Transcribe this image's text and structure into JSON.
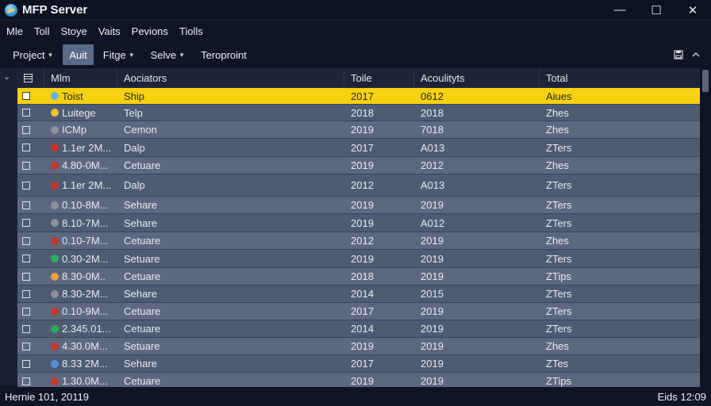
{
  "window": {
    "title": "MFP Server",
    "minimize_glyph": "—",
    "maximize_glyph": "☐",
    "close_glyph": "✕",
    "app_icon": "globe-pen-icon"
  },
  "menubar": {
    "items": [
      {
        "label": "Mle"
      },
      {
        "label": "Toll"
      },
      {
        "label": "Stoye"
      },
      {
        "label": "Vaits"
      },
      {
        "label": "Pevions"
      },
      {
        "label": "Tiolls"
      }
    ]
  },
  "toolbar": {
    "items": [
      {
        "label": "Project",
        "dropdown": true,
        "active": false
      },
      {
        "label": "Auit",
        "dropdown": false,
        "active": true
      },
      {
        "label": "Fitge",
        "dropdown": true,
        "active": false
      },
      {
        "label": "Selve",
        "dropdown": true,
        "active": false
      },
      {
        "label": "Teroproint",
        "dropdown": false,
        "active": false
      }
    ],
    "right_icons": [
      "save-icon",
      "collapse-icon"
    ]
  },
  "grid": {
    "gutter_icon": "chevron-down-icon",
    "header_icon": "table-icon",
    "columns": [
      "Mlm",
      "Aociators",
      "Toile",
      "Acoulityts",
      "Total"
    ],
    "rows": [
      {
        "name": "Toist",
        "assoc": "Ship",
        "year": "2017",
        "acc": "0612",
        "total": "Aiues",
        "icon_color": "#6bb0e8",
        "selected": true
      },
      {
        "name": "Luitege",
        "assoc": "Telp",
        "year": "2018",
        "acc": "2018",
        "total": "Zhes",
        "icon_color": "#f1c232",
        "selected": false
      },
      {
        "name": "ICMp",
        "assoc": "Cemon",
        "year": "2019",
        "acc": "7018",
        "total": "Zhes",
        "icon_color": "#8d8f99",
        "selected": false
      },
      {
        "name": "1.1er 2M...",
        "assoc": "Dalp",
        "year": "2017",
        "acc": "A013",
        "total": "ZTers",
        "icon_color": "#c0392b",
        "selected": false
      },
      {
        "name": "4.80-0M...",
        "assoc": "Cetuare",
        "year": "2019",
        "acc": "2012",
        "total": "Zhes",
        "icon_color": "#c0392b",
        "selected": false
      },
      {
        "name": "1.1er 2M...",
        "assoc": "Dalp",
        "year": "2012",
        "acc": "A013",
        "total": "ZTers",
        "icon_color": "#c0392b",
        "selected": false
      },
      {
        "name": "0.10-8M...",
        "assoc": "Sehare",
        "year": "2019",
        "acc": "2019",
        "total": "ZTers",
        "icon_color": "#8d8f99",
        "selected": false
      },
      {
        "name": "8.10-7M...",
        "assoc": "Sehare",
        "year": "2019",
        "acc": "A012",
        "total": "ZTers",
        "icon_color": "#8d8f99",
        "selected": false
      },
      {
        "name": "0.10-7M...",
        "assoc": "Cetuare",
        "year": "2012",
        "acc": "2019",
        "total": "Zhes",
        "icon_color": "#c0392b",
        "selected": false
      },
      {
        "name": "0.30-2M...",
        "assoc": "Setuare",
        "year": "2019",
        "acc": "2019",
        "total": "ZTers",
        "icon_color": "#27ae60",
        "selected": false
      },
      {
        "name": "8.30-0M..",
        "assoc": "Cetuare",
        "year": "2018",
        "acc": "2019",
        "total": "ZTips",
        "icon_color": "#e6a23c",
        "selected": false
      },
      {
        "name": "8.30-2M...",
        "assoc": "Sehare",
        "year": "2014",
        "acc": "2015",
        "total": "ZTers",
        "icon_color": "#8d8f99",
        "selected": false
      },
      {
        "name": "0.10-9M...",
        "assoc": "Cetuare",
        "year": "2017",
        "acc": "2019",
        "total": "ZTers",
        "icon_color": "#c0392b",
        "selected": false
      },
      {
        "name": "2.345.01...",
        "assoc": "Cetuare",
        "year": "2014",
        "acc": "2019",
        "total": "ZTers",
        "icon_color": "#27ae60",
        "selected": false
      },
      {
        "name": "4.30.0M...",
        "assoc": "Setuare",
        "year": "2019",
        "acc": "2019",
        "total": "Zhes",
        "icon_color": "#c0392b",
        "selected": false
      },
      {
        "name": "8.33 2M...",
        "assoc": "Sehare",
        "year": "2017",
        "acc": "2019",
        "total": "ZTes",
        "icon_color": "#5b8dd8",
        "selected": false
      },
      {
        "name": "1.30.0M...",
        "assoc": "Cetuare",
        "year": "2019",
        "acc": "2019",
        "total": "ZTips",
        "icon_color": "#c0392b",
        "selected": false
      }
    ]
  },
  "statusbar": {
    "left": "Hernie 101, 20119",
    "right": "Eids 12:09"
  }
}
